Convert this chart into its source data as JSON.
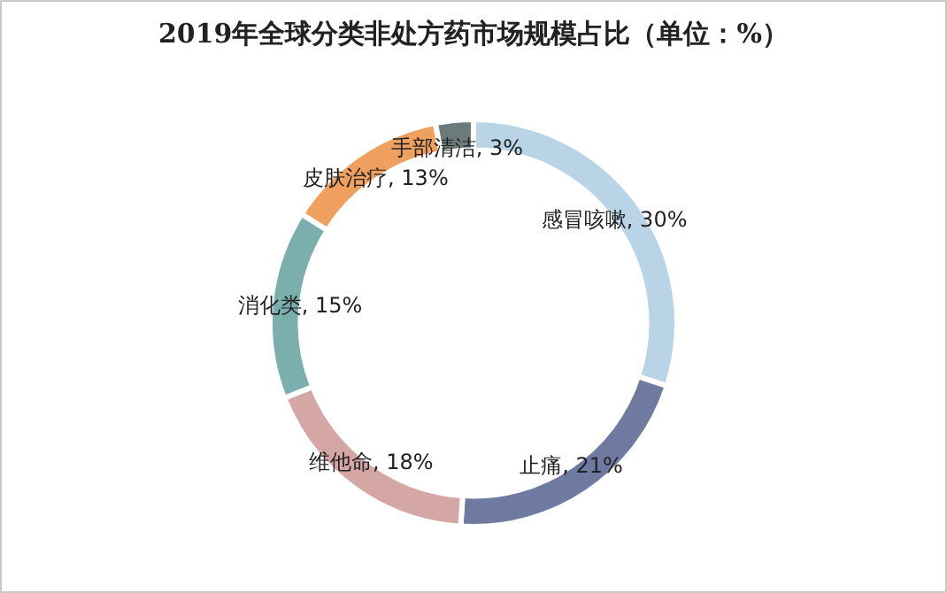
{
  "chart_data": {
    "type": "donut",
    "title": "2019年全球分类非处方药市场规模占比（单位：%）",
    "categories": [
      "感冒咳嗽",
      "止痛",
      "维他命",
      "消化类",
      "皮肤治疗",
      "手部清洁"
    ],
    "values": [
      30,
      21,
      18,
      15,
      13,
      3
    ],
    "colors": [
      "#b9d4e6",
      "#6f7aa0",
      "#d4a6a4",
      "#7aafad",
      "#f0a05e",
      "#6c7a7a"
    ],
    "value_labels": [
      "30%",
      "21%",
      "18%",
      "15%",
      "13%",
      "3%"
    ],
    "legend": false
  }
}
